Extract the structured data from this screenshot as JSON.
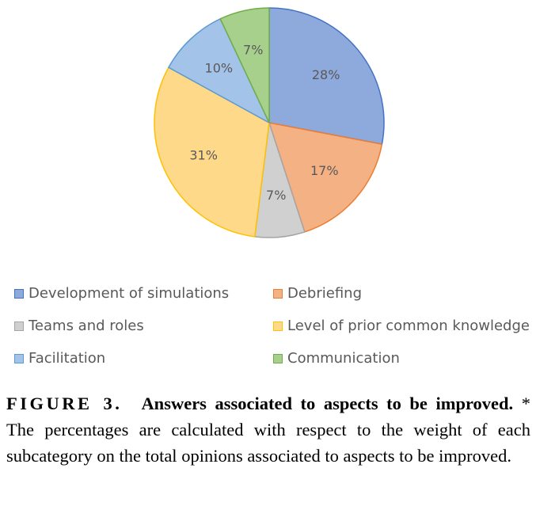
{
  "chart_data": {
    "type": "pie",
    "slices": [
      {
        "label": "Development of simulations",
        "value": 28,
        "display": "28%",
        "color": "#8EA9DB",
        "stroke": "#4472C4"
      },
      {
        "label": "Debriefing",
        "value": 17,
        "display": "17%",
        "color": "#F4B183",
        "stroke": "#ED7D31"
      },
      {
        "label": "Teams and roles",
        "value": 7,
        "display": "7%",
        "color": "#D0D0D0",
        "stroke": "#A5A5A5"
      },
      {
        "label": "Level of prior common knowledge",
        "value": 31,
        "display": "31%",
        "color": "#FFD98A",
        "stroke": "#FFC000"
      },
      {
        "label": "Facilitation",
        "value": 10,
        "display": "10%",
        "color": "#A4C3E8",
        "stroke": "#5B9BD5"
      },
      {
        "label": "Communication",
        "value": 7,
        "display": "7%",
        "color": "#A8D08D",
        "stroke": "#70AD47"
      }
    ],
    "legend_position": "bottom"
  },
  "caption": {
    "label": "FIGURE 3.",
    "title": "Answers associated to aspects to be improved.",
    "body": "* The percentages are calculated with respect to the weight of each subcategory on the total opinions associated to aspects to be improved."
  }
}
